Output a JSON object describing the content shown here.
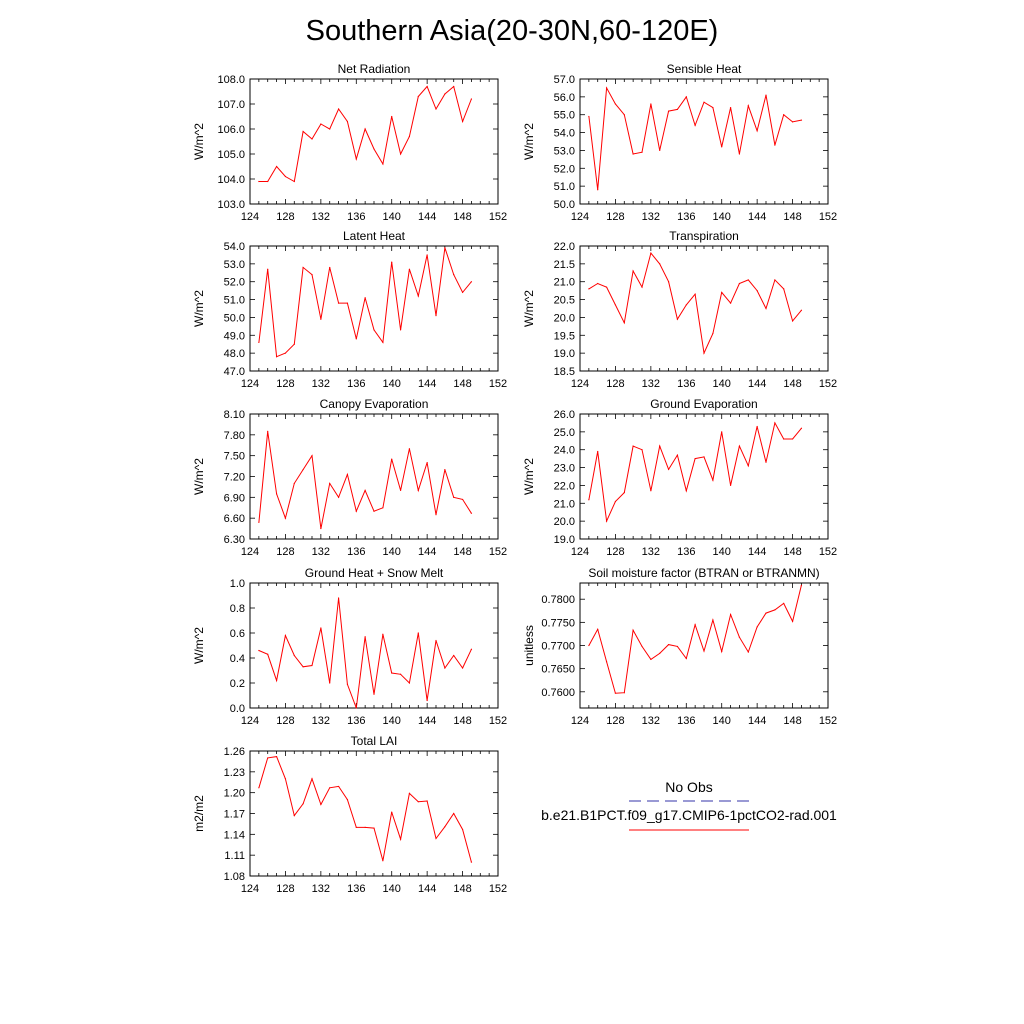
{
  "page": {
    "title": "Southern Asia(20-30N,60-120E)"
  },
  "legend": {
    "entries": [
      {
        "label": "No Obs",
        "color": "#3333aa",
        "dashed": true
      },
      {
        "label": "b.e21.B1PCT.f09_g17.CMIP6-1pctCO2-rad.001",
        "color": "#ff0000",
        "dashed": false
      }
    ]
  },
  "chart_data": [
    {
      "type": "line",
      "title": "Net Radiation",
      "ylabel": "W/m^2",
      "xlim": [
        124,
        152
      ],
      "ylim": [
        103,
        108
      ],
      "xticks": [
        "124",
        "128",
        "132",
        "136",
        "140",
        "144",
        "148",
        "152"
      ],
      "yticks": [
        "103.0",
        "104.0",
        "105.0",
        "106.0",
        "107.0",
        "108.0"
      ],
      "x": [
        125,
        126,
        127,
        128,
        129,
        130,
        131,
        132,
        133,
        134,
        135,
        136,
        137,
        138,
        139,
        140,
        141,
        142,
        143,
        144,
        145,
        146,
        147,
        148,
        149
      ],
      "series": [
        {
          "color": "#ff0000",
          "values": [
            103.9,
            103.9,
            104.5,
            104.1,
            103.9,
            105.9,
            105.6,
            106.2,
            106.0,
            106.8,
            106.3,
            104.8,
            106.0,
            105.2,
            104.6,
            106.5,
            105.0,
            105.7,
            107.3,
            107.7,
            106.8,
            107.4,
            107.7,
            106.3,
            107.2
          ]
        }
      ]
    },
    {
      "type": "line",
      "title": "Sensible Heat",
      "ylabel": "W/m^2",
      "xlim": [
        124,
        152
      ],
      "ylim": [
        50,
        57
      ],
      "xticks": [
        "124",
        "128",
        "132",
        "136",
        "140",
        "144",
        "148",
        "152"
      ],
      "yticks": [
        "50.0",
        "51.0",
        "52.0",
        "53.0",
        "54.0",
        "55.0",
        "56.0",
        "57.0"
      ],
      "x": [
        125,
        126,
        127,
        128,
        129,
        130,
        131,
        132,
        133,
        134,
        135,
        136,
        137,
        138,
        139,
        140,
        141,
        142,
        143,
        144,
        145,
        146,
        147,
        148,
        149
      ],
      "series": [
        {
          "color": "#ff0000",
          "values": [
            54.9,
            50.8,
            56.5,
            55.6,
            55.0,
            52.8,
            52.9,
            55.6,
            53.0,
            55.2,
            55.3,
            56.0,
            54.4,
            55.7,
            55.4,
            53.2,
            55.4,
            52.8,
            55.5,
            54.1,
            56.1,
            53.3,
            55.0,
            54.6,
            54.7
          ]
        }
      ]
    },
    {
      "type": "line",
      "title": "Latent Heat",
      "ylabel": "W/m^2",
      "xlim": [
        124,
        152
      ],
      "ylim": [
        47,
        54
      ],
      "xticks": [
        "124",
        "128",
        "132",
        "136",
        "140",
        "144",
        "148",
        "152"
      ],
      "yticks": [
        "47.0",
        "48.0",
        "49.0",
        "50.0",
        "51.0",
        "52.0",
        "53.0",
        "54.0"
      ],
      "x": [
        125,
        126,
        127,
        128,
        129,
        130,
        131,
        132,
        133,
        134,
        135,
        136,
        137,
        138,
        139,
        140,
        141,
        142,
        143,
        144,
        145,
        146,
        147,
        148,
        149
      ],
      "series": [
        {
          "color": "#ff0000",
          "values": [
            48.6,
            52.7,
            47.8,
            48.0,
            48.5,
            52.8,
            52.4,
            49.9,
            52.8,
            50.8,
            50.8,
            48.8,
            51.1,
            49.3,
            48.6,
            53.1,
            49.3,
            52.7,
            51.2,
            53.5,
            50.1,
            53.9,
            52.4,
            51.4,
            52.0
          ]
        }
      ]
    },
    {
      "type": "line",
      "title": "Transpiration",
      "ylabel": "W/m^2",
      "xlim": [
        124,
        152
      ],
      "ylim": [
        18.5,
        22
      ],
      "xticks": [
        "124",
        "128",
        "132",
        "136",
        "140",
        "144",
        "148",
        "152"
      ],
      "yticks": [
        "18.5",
        "19.0",
        "19.5",
        "20.0",
        "20.5",
        "21.0",
        "21.5",
        "22.0"
      ],
      "x": [
        125,
        126,
        127,
        128,
        129,
        130,
        131,
        132,
        133,
        134,
        135,
        136,
        137,
        138,
        139,
        140,
        141,
        142,
        143,
        144,
        145,
        146,
        147,
        148,
        149
      ],
      "series": [
        {
          "color": "#ff0000",
          "values": [
            20.8,
            20.95,
            20.85,
            20.35,
            19.85,
            21.3,
            20.85,
            21.8,
            21.5,
            21.0,
            19.95,
            20.35,
            20.65,
            19.0,
            19.55,
            20.7,
            20.4,
            20.95,
            21.05,
            20.75,
            20.25,
            21.05,
            20.8,
            19.9,
            20.2
          ]
        }
      ]
    },
    {
      "type": "line",
      "title": "Canopy Evaporation",
      "ylabel": "W/m^2",
      "xlim": [
        124,
        152
      ],
      "ylim": [
        6.3,
        8.1
      ],
      "xticks": [
        "124",
        "128",
        "132",
        "136",
        "140",
        "144",
        "148",
        "152"
      ],
      "yticks": [
        "6.30",
        "6.60",
        "6.90",
        "7.20",
        "7.50",
        "7.80",
        "8.10"
      ],
      "x": [
        125,
        126,
        127,
        128,
        129,
        130,
        131,
        132,
        133,
        134,
        135,
        136,
        137,
        138,
        139,
        140,
        141,
        142,
        143,
        144,
        145,
        146,
        147,
        148,
        149
      ],
      "series": [
        {
          "color": "#ff0000",
          "values": [
            6.54,
            7.85,
            6.95,
            6.6,
            7.1,
            7.3,
            7.5,
            6.45,
            7.1,
            6.9,
            7.23,
            6.7,
            7.0,
            6.7,
            6.75,
            7.45,
            7.0,
            7.6,
            7.0,
            7.4,
            6.65,
            7.3,
            6.9,
            6.87,
            6.67
          ]
        }
      ]
    },
    {
      "type": "line",
      "title": "Ground Evaporation",
      "ylabel": "W/m^2",
      "xlim": [
        124,
        152
      ],
      "ylim": [
        19,
        26
      ],
      "xticks": [
        "124",
        "128",
        "132",
        "136",
        "140",
        "144",
        "148",
        "152"
      ],
      "yticks": [
        "19.0",
        "20.0",
        "21.0",
        "22.0",
        "23.0",
        "24.0",
        "25.0",
        "26.0"
      ],
      "x": [
        125,
        126,
        127,
        128,
        129,
        130,
        131,
        132,
        133,
        134,
        135,
        136,
        137,
        138,
        139,
        140,
        141,
        142,
        143,
        144,
        145,
        146,
        147,
        148,
        149
      ],
      "series": [
        {
          "color": "#ff0000",
          "values": [
            21.2,
            23.9,
            20.0,
            21.1,
            21.6,
            24.2,
            24.0,
            21.7,
            24.2,
            22.9,
            23.7,
            21.7,
            23.5,
            23.6,
            22.3,
            25.0,
            22.0,
            24.2,
            23.1,
            25.3,
            23.3,
            25.5,
            24.6,
            24.6,
            25.2
          ]
        }
      ]
    },
    {
      "type": "line",
      "title": "Ground Heat + Snow Melt",
      "ylabel": "W/m^2",
      "xlim": [
        124,
        152
      ],
      "ylim": [
        0,
        1
      ],
      "xticks": [
        "124",
        "128",
        "132",
        "136",
        "140",
        "144",
        "148",
        "152"
      ],
      "yticks": [
        "0.0",
        "0.2",
        "0.4",
        "0.6",
        "0.8",
        "1.0"
      ],
      "x": [
        125,
        126,
        127,
        128,
        129,
        130,
        131,
        132,
        133,
        134,
        135,
        136,
        137,
        138,
        139,
        140,
        141,
        142,
        143,
        144,
        145,
        146,
        147,
        148,
        149
      ],
      "series": [
        {
          "color": "#ff0000",
          "values": [
            0.46,
            0.43,
            0.22,
            0.58,
            0.42,
            0.33,
            0.34,
            0.64,
            0.2,
            0.88,
            0.19,
            0.0,
            0.57,
            0.11,
            0.59,
            0.28,
            0.27,
            0.2,
            0.6,
            0.06,
            0.54,
            0.32,
            0.42,
            0.32,
            0.47
          ]
        }
      ]
    },
    {
      "type": "line",
      "title": "Soil moisture factor (BTRAN or BTRANMN)",
      "ylabel": "unitless",
      "xlim": [
        124,
        152
      ],
      "ylim": [
        0.7565,
        0.7835
      ],
      "xticks": [
        "124",
        "128",
        "132",
        "136",
        "140",
        "144",
        "148",
        "152"
      ],
      "yticks": [
        "0.7600",
        "0.7650",
        "0.7700",
        "0.7750",
        "0.7800"
      ],
      "ytick_values": [
        0.76,
        0.765,
        0.77,
        0.775,
        0.78
      ],
      "x": [
        125,
        126,
        127,
        128,
        129,
        130,
        131,
        132,
        133,
        134,
        135,
        136,
        137,
        138,
        139,
        140,
        141,
        142,
        143,
        144,
        145,
        146,
        147,
        148,
        149
      ],
      "series": [
        {
          "color": "#ff0000",
          "values": [
            0.77,
            0.7735,
            0.7665,
            0.7597,
            0.7598,
            0.7733,
            0.7698,
            0.767,
            0.7683,
            0.7702,
            0.7698,
            0.7672,
            0.7745,
            0.7688,
            0.7755,
            0.7687,
            0.7767,
            0.7718,
            0.7686,
            0.774,
            0.777,
            0.7777,
            0.7791,
            0.7752,
            0.783
          ]
        }
      ]
    },
    {
      "type": "line",
      "title": "Total LAI",
      "ylabel": "m2/m2",
      "xlim": [
        124,
        152
      ],
      "ylim": [
        1.08,
        1.26
      ],
      "xticks": [
        "124",
        "128",
        "132",
        "136",
        "140",
        "144",
        "148",
        "152"
      ],
      "yticks": [
        "1.08",
        "1.11",
        "1.14",
        "1.17",
        "1.20",
        "1.23",
        "1.26"
      ],
      "x": [
        125,
        126,
        127,
        128,
        129,
        130,
        131,
        132,
        133,
        134,
        135,
        136,
        137,
        138,
        139,
        140,
        141,
        142,
        143,
        144,
        145,
        146,
        147,
        148,
        149
      ],
      "series": [
        {
          "color": "#ff0000",
          "values": [
            1.207,
            1.25,
            1.252,
            1.22,
            1.167,
            1.184,
            1.22,
            1.183,
            1.207,
            1.209,
            1.19,
            1.15,
            1.15,
            1.149,
            1.102,
            1.172,
            1.133,
            1.199,
            1.187,
            1.188,
            1.134,
            1.151,
            1.17,
            1.147,
            1.1
          ]
        }
      ]
    }
  ]
}
